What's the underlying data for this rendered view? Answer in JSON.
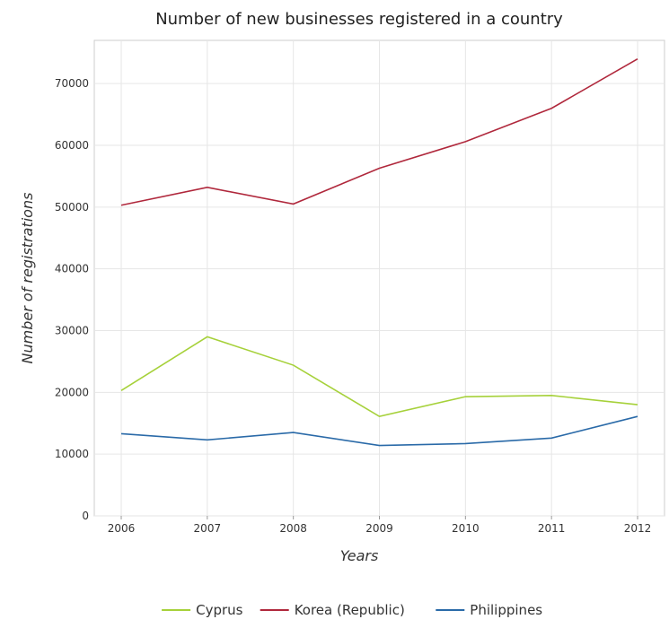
{
  "chart_data": {
    "type": "line",
    "title": "Number of new businesses registered in a country",
    "xlabel": "Years",
    "ylabel": "Number of registrations",
    "categories": [
      "2006",
      "2007",
      "2008",
      "2009",
      "2010",
      "2011",
      "2012"
    ],
    "ylim": [
      0,
      77000
    ],
    "yticks": [
      0,
      10000,
      20000,
      30000,
      40000,
      50000,
      60000,
      70000
    ],
    "ytick_labels": [
      "0",
      "10000",
      "20000",
      "30000",
      "40000",
      "50000",
      "60000",
      "70000"
    ],
    "grid": true,
    "legend_position": "bottom",
    "series": [
      {
        "name": "Cyprus",
        "color": "#a6d13a",
        "values": [
          20300,
          29000,
          24400,
          16100,
          19300,
          19500,
          18000
        ]
      },
      {
        "name": "Korea (Republic)",
        "color": "#b0283c",
        "values": [
          50300,
          53200,
          50500,
          56300,
          60600,
          66000,
          74000
        ]
      },
      {
        "name": "Philippines",
        "color": "#2a6aa8",
        "values": [
          13300,
          12300,
          13500,
          11400,
          11700,
          12600,
          16100
        ]
      }
    ]
  }
}
